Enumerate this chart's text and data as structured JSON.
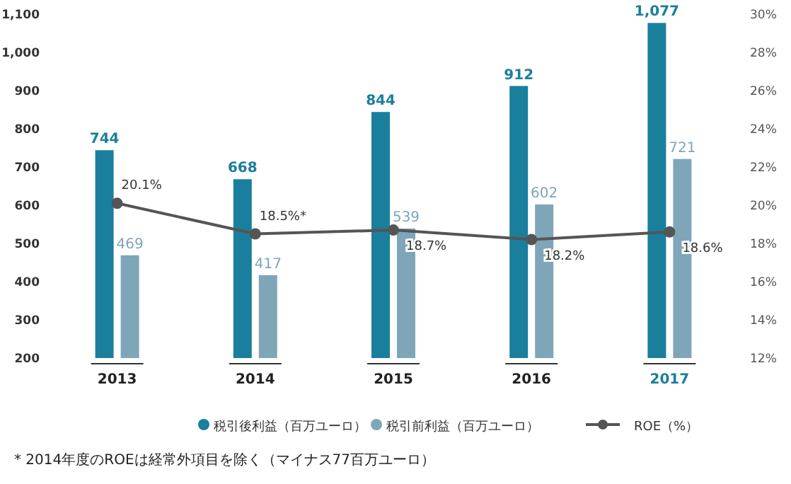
{
  "chart_data": {
    "type": "bar",
    "categories": [
      "2013",
      "2014",
      "2015",
      "2016",
      "2017"
    ],
    "series": [
      {
        "name": "税引後利益（百万ユーロ）",
        "color": "#1a7f9c",
        "values": [
          744,
          668,
          844,
          912,
          1077
        ],
        "value_labels": [
          "744",
          "668",
          "844",
          "912",
          "1,077"
        ]
      },
      {
        "name": "税引前利益（百万ユーロ）",
        "color": "#7fa6b8",
        "values": [
          469,
          417,
          539,
          602,
          721
        ]
      },
      {
        "name": "ROE（%）",
        "type": "line",
        "axis": "y2",
        "color": "#555555",
        "marker": "circle",
        "values": [
          20.1,
          18.5,
          18.7,
          18.2,
          18.6
        ],
        "value_labels": [
          "20.1%",
          "18.5%*",
          "18.7%",
          "18.2%",
          "18.6%"
        ]
      }
    ],
    "ylim": [
      200,
      1100
    ],
    "yticks": [
      200,
      300,
      400,
      500,
      600,
      700,
      800,
      900,
      {
        "value": 1000,
        "label": "1,000"
      },
      {
        "value": 1100,
        "label": "1,100"
      }
    ],
    "y2lim": [
      12,
      30
    ],
    "y2ticks": [
      {
        "value": 12,
        "label": "12%"
      },
      {
        "value": 14,
        "label": "14%"
      },
      {
        "value": 16,
        "label": "16%"
      },
      {
        "value": 18,
        "label": "18%"
      },
      {
        "value": 20,
        "label": "20%"
      },
      {
        "value": 22,
        "label": "22%"
      },
      {
        "value": 24,
        "label": "24%"
      },
      {
        "value": 26,
        "label": "26%"
      },
      {
        "value": 28,
        "label": "28%"
      },
      {
        "value": 30,
        "label": "30%"
      }
    ],
    "data_labels": true,
    "grid": false,
    "legend": "bottom",
    "annotations": [
      "* 2014年度のROEは経常外項目を除く（マイナス77百万ユーロ）"
    ]
  }
}
